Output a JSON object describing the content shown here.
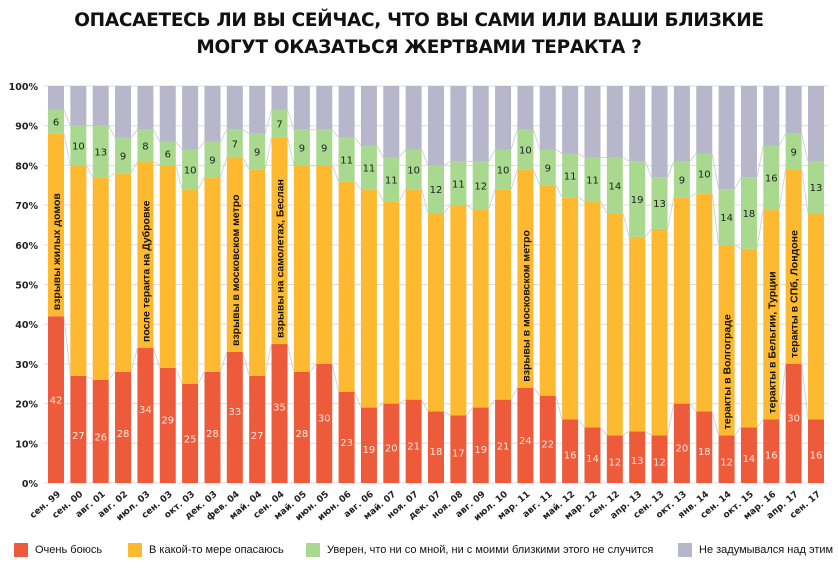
{
  "chart_data": {
    "type": "bar",
    "stacked": true,
    "title": "ОПАСАЕТЕСЬ ЛИ ВЫ СЕЙЧАС, ЧТО ВЫ САМИ ИЛИ ВАШИ БЛИЗКИЕ МОГУТ ОКАЗАТЬСЯ ЖЕРТВАМИ ТЕРАКТА ?",
    "title_lines": [
      "ОПАСАЕТЕСЬ ЛИ ВЫ СЕЙЧАС, ЧТО ВЫ САМИ ИЛИ ВАШИ БЛИЗКИЕ",
      "МОГУТ ОКАЗАТЬСЯ ЖЕРТВАМИ ТЕРАКТА ?"
    ],
    "xlabel": "",
    "ylabel": "",
    "ylim": [
      0,
      100
    ],
    "yticks": [
      "0%",
      "10%",
      "20%",
      "30%",
      "40%",
      "50%",
      "60%",
      "70%",
      "80%",
      "90%",
      "100%"
    ],
    "grid": true,
    "legend_position": "bottom",
    "categories": [
      "сен. 99",
      "сен. 00",
      "авг. 01",
      "авг. 02",
      "июл. 03",
      "сен. 03",
      "окт. 03",
      "дек. 03",
      "фев. 04",
      "май. 04",
      "сен. 04",
      "май. 05",
      "июн. 05",
      "июн. 06",
      "авг. 06",
      "май. 07",
      "ноя. 07",
      "дек. 07",
      "ноя. 08",
      "авг. 09",
      "июл. 10",
      "мар. 11",
      "авг. 11",
      "май. 12",
      "мар. 12",
      "сен. 12",
      "апр. 13",
      "сен. 13",
      "окт. 13",
      "янв. 14",
      "сен. 14",
      "окт. 15",
      "мар. 16",
      "апр. 17",
      "сен. 17"
    ],
    "series": [
      {
        "name": "Очень боюсь",
        "color": "#EE5B3A",
        "labeled": true,
        "values": [
          42,
          27,
          26,
          28,
          34,
          29,
          25,
          28,
          33,
          27,
          35,
          28,
          30,
          23,
          19,
          20,
          21,
          18,
          17,
          19,
          21,
          24,
          22,
          16,
          14,
          12,
          13,
          12,
          20,
          18,
          12,
          14,
          16,
          30,
          16
        ]
      },
      {
        "name": "В какой-то мере опасаюсь",
        "color": "#FDBA31",
        "labeled": false,
        "values": [
          46,
          53,
          51,
          50,
          47,
          51,
          49,
          49,
          49,
          52,
          52,
          52,
          50,
          53,
          55,
          51,
          53,
          50,
          53,
          50,
          53,
          55,
          53,
          56,
          57,
          56,
          49,
          52,
          52,
          55,
          48,
          45,
          53,
          49,
          52
        ]
      },
      {
        "name": "Уверен, что ни со мной, ни с моими близкими этого не случится",
        "color": "#A9D98F",
        "labeled": true,
        "values": [
          6,
          10,
          13,
          9,
          8,
          6,
          10,
          9,
          7,
          9,
          7,
          9,
          9,
          11,
          11,
          11,
          10,
          12,
          11,
          12,
          10,
          10,
          9,
          11,
          11,
          14,
          19,
          13,
          9,
          10,
          14,
          18,
          16,
          9,
          13
        ]
      },
      {
        "name": "Не задумывался над этим",
        "color": "#B8B6CA",
        "labeled": false,
        "values": [
          6,
          10,
          10,
          13,
          11,
          14,
          16,
          14,
          11,
          12,
          6,
          11,
          11,
          13,
          15,
          18,
          16,
          20,
          19,
          19,
          16,
          11,
          16,
          17,
          18,
          18,
          19,
          23,
          19,
          17,
          26,
          23,
          15,
          12,
          19
        ]
      }
    ],
    "annotations": [
      {
        "category": "сен. 99",
        "text": "взрывы жилых домов"
      },
      {
        "category": "июл. 03",
        "text": "после теракта на Дубровке"
      },
      {
        "category": "фев. 04",
        "text": "взрывы в московском метро"
      },
      {
        "category": "сен. 04",
        "text": "взрывы  на самолетах, Беслан"
      },
      {
        "category": "мар. 11",
        "text": "взрывы в московском метро"
      },
      {
        "category": "сен. 14",
        "text": "теракты в Волгограде"
      },
      {
        "category": "мар. 16",
        "text": "теракты в Бельгии, Турции"
      },
      {
        "category": "апр. 17",
        "text": "теракты в СПб, Лондоне"
      }
    ]
  }
}
